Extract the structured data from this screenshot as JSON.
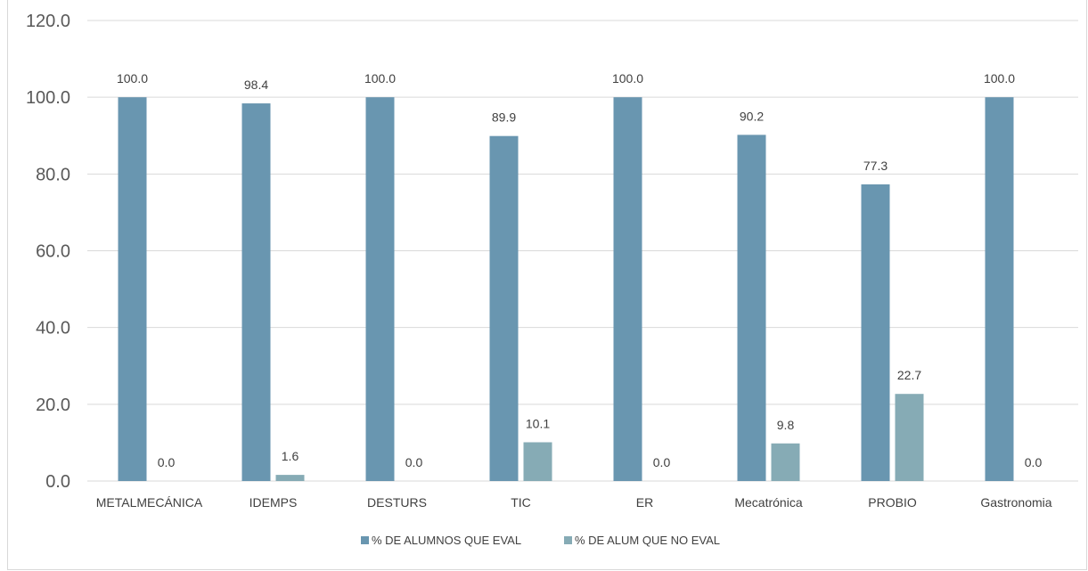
{
  "chart_data": {
    "type": "bar",
    "categories": [
      "METALMECÁNICA",
      "IDEMPS",
      "DESTURS",
      "TIC",
      "ER",
      "Mecatrónica",
      "PROBIO",
      "Gastronomia"
    ],
    "series": [
      {
        "name": "% DE ALUMNOS QUE EVAL",
        "values": [
          100.0,
          98.4,
          100.0,
          89.9,
          100.0,
          90.2,
          77.3,
          100.0
        ],
        "color": "#6996b0"
      },
      {
        "name": "% DE ALUM QUE NO EVAL",
        "values": [
          0.0,
          1.6,
          0.0,
          10.1,
          0.0,
          9.8,
          22.7,
          0.0
        ],
        "color": "#86abb5"
      }
    ],
    "yticks": [
      "0.0",
      "20.0",
      "40.0",
      "60.0",
      "80.0",
      "100.0",
      "120.0"
    ],
    "ylim": [
      0,
      120
    ],
    "grid": true,
    "legend_position": "bottom",
    "title": "",
    "xlabel": "",
    "ylabel": ""
  }
}
